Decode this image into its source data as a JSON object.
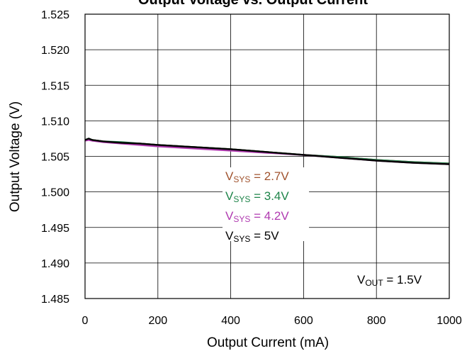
{
  "chart_data": {
    "type": "line",
    "title": "Output Voltage vs. Output Current",
    "xlabel": "Output Current (mA)",
    "ylabel": "Output Voltage (V)",
    "xlim": [
      0,
      1000
    ],
    "ylim": [
      1.485,
      1.525
    ],
    "x_ticks": [
      "0",
      "200",
      "400",
      "600",
      "800",
      "1000"
    ],
    "y_ticks": [
      "1.485",
      "1.490",
      "1.495",
      "1.500",
      "1.505",
      "1.510",
      "1.515",
      "1.520",
      "1.525"
    ],
    "grid": true,
    "x": [
      0,
      10,
      20,
      50,
      100,
      150,
      200,
      300,
      400,
      500,
      600,
      700,
      800,
      900,
      1000
    ],
    "series": [
      {
        "name": "2.7V",
        "color": "#A0522D",
        "values": [
          1.5072,
          1.5074,
          1.5073,
          1.5071,
          1.5069,
          1.5068,
          1.5066,
          1.5063,
          1.506,
          1.5056,
          1.5052,
          1.5049,
          1.5045,
          1.5042,
          1.504
        ]
      },
      {
        "name": "3.4V",
        "color": "#1E8449",
        "values": [
          1.5073,
          1.5075,
          1.5073,
          1.5071,
          1.507,
          1.5068,
          1.5066,
          1.5063,
          1.506,
          1.5056,
          1.5052,
          1.5049,
          1.5045,
          1.5042,
          1.504
        ]
      },
      {
        "name": "4.2V",
        "color": "#B03AB0",
        "values": [
          1.5072,
          1.5073,
          1.5072,
          1.507,
          1.5068,
          1.5066,
          1.5064,
          1.5061,
          1.5058,
          1.5055,
          1.5052,
          1.5048,
          1.5044,
          1.5041,
          1.5039
        ]
      },
      {
        "name": "5V",
        "color": "#000000",
        "values": [
          1.5073,
          1.5075,
          1.5073,
          1.5071,
          1.5069,
          1.5068,
          1.5066,
          1.5063,
          1.506,
          1.5056,
          1.5052,
          1.5048,
          1.5044,
          1.5041,
          1.5039
        ]
      }
    ],
    "legend": {
      "placement": "center",
      "prefix": "V",
      "subscript": "SYS",
      "separator": " = ",
      "entries": [
        "2.7V",
        "3.4V",
        "4.2V",
        "5V"
      ]
    },
    "annotation": {
      "prefix": "V",
      "subscript": "OUT",
      "text": " = 1.5V",
      "placement": "bottom-right"
    }
  }
}
